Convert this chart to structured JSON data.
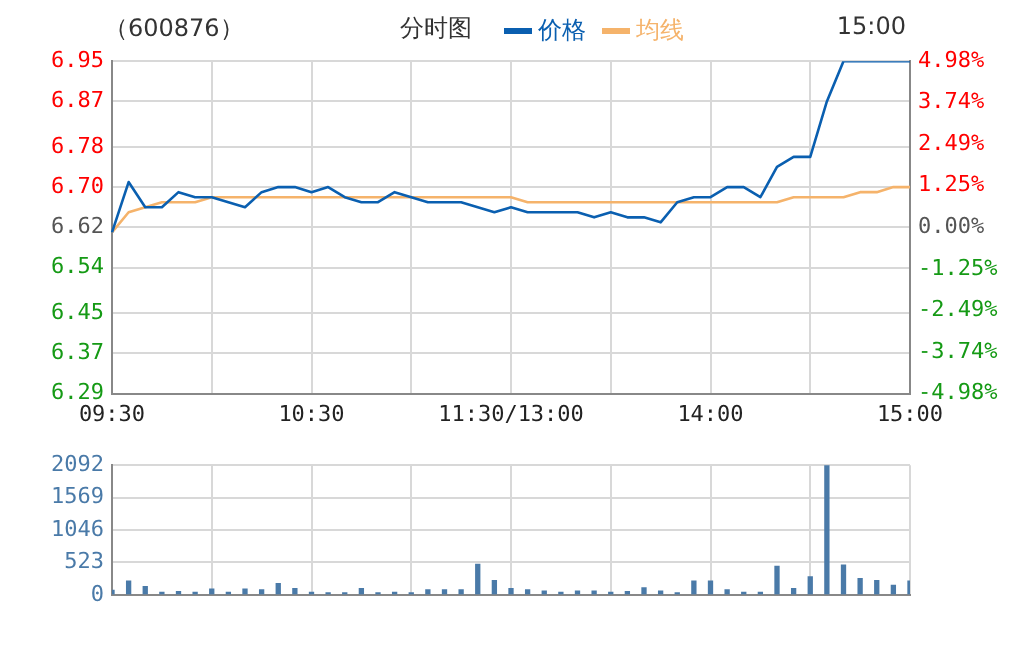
{
  "chart_data": [
    {
      "type": "line",
      "title": "分时图",
      "subtitle": "（600876）",
      "annotations": [
        "15:00"
      ],
      "legend": "top",
      "grid": true,
      "marker": "none",
      "line_style": "solid",
      "categories": [
        "09:30",
        null,
        null,
        null,
        null,
        null,
        null,
        null,
        null,
        null,
        null,
        null,
        "10:30",
        null,
        null,
        null,
        null,
        null,
        null,
        null,
        null,
        null,
        null,
        null,
        "11:30/13:00",
        null,
        null,
        null,
        null,
        null,
        null,
        null,
        null,
        null,
        null,
        null,
        "14:00",
        null,
        null,
        null,
        null,
        null,
        null,
        null,
        null,
        null,
        null,
        null,
        "15:00"
      ],
      "ylim": [
        6.29,
        6.95
      ],
      "yticks": [
        {
          "value": 6.29,
          "label": "6.29"
        },
        {
          "value": 6.37,
          "label": "6.37"
        },
        {
          "value": 6.45,
          "label": "6.45"
        },
        {
          "value": 6.54,
          "label": "6.54"
        },
        {
          "value": 6.62,
          "label": "6.62"
        },
        {
          "value": 6.7,
          "label": "6.70"
        },
        {
          "value": 6.78,
          "label": "6.78"
        },
        {
          "value": 6.87,
          "label": "6.87"
        },
        {
          "value": 6.95,
          "label": "6.95"
        }
      ],
      "y2lim": [
        -4.98,
        4.98
      ],
      "y2ticks": [
        {
          "value": -4.98,
          "label": "-4.98%"
        },
        {
          "value": -3.74,
          "label": "-3.74%"
        },
        {
          "value": -2.49,
          "label": "-2.49%"
        },
        {
          "value": -1.25,
          "label": "-1.25%"
        },
        {
          "value": 0,
          "label": "0.00%"
        },
        {
          "value": 1.25,
          "label": "1.25%"
        },
        {
          "value": 2.49,
          "label": "2.49%"
        },
        {
          "value": 3.74,
          "label": "3.74%"
        },
        {
          "value": 4.98,
          "label": "4.98%"
        }
      ],
      "series": [
        {
          "name": "价格",
          "color": "#0a5fb0",
          "values": [
            6.61,
            6.71,
            6.66,
            6.66,
            6.69,
            6.68,
            6.68,
            6.67,
            6.66,
            6.69,
            6.7,
            6.7,
            6.69,
            6.7,
            6.68,
            6.67,
            6.67,
            6.69,
            6.68,
            6.67,
            6.67,
            6.67,
            6.66,
            6.65,
            6.66,
            6.65,
            6.65,
            6.65,
            6.65,
            6.64,
            6.65,
            6.64,
            6.64,
            6.63,
            6.67,
            6.68,
            6.68,
            6.7,
            6.7,
            6.68,
            6.74,
            6.76,
            6.76,
            6.87,
            6.95,
            6.95,
            6.95,
            6.95,
            6.95
          ]
        },
        {
          "name": "均线",
          "color": "#f5b36b",
          "values": [
            6.61,
            6.65,
            6.66,
            6.67,
            6.67,
            6.67,
            6.68,
            6.68,
            6.68,
            6.68,
            6.68,
            6.68,
            6.68,
            6.68,
            6.68,
            6.68,
            6.68,
            6.68,
            6.68,
            6.68,
            6.68,
            6.68,
            6.68,
            6.68,
            6.68,
            6.67,
            6.67,
            6.67,
            6.67,
            6.67,
            6.67,
            6.67,
            6.67,
            6.67,
            6.67,
            6.67,
            6.67,
            6.67,
            6.67,
            6.67,
            6.67,
            6.68,
            6.68,
            6.68,
            6.68,
            6.69,
            6.69,
            6.7,
            6.7
          ]
        }
      ]
    },
    {
      "type": "bar",
      "grid": true,
      "tick_labels": "y",
      "color": "#4a7aa8",
      "categories": [
        null,
        null,
        null,
        null,
        null,
        null,
        null,
        null,
        null,
        null,
        null,
        null,
        null,
        null,
        null,
        null,
        null,
        null,
        null,
        null,
        null,
        null,
        null,
        null,
        null,
        null,
        null,
        null,
        null,
        null,
        null,
        null,
        null,
        null,
        null,
        null,
        null,
        null,
        null,
        null,
        null,
        null,
        null,
        null,
        null,
        null,
        null,
        null,
        null
      ],
      "ylim": [
        0,
        2092
      ],
      "yticks": [
        0,
        523,
        1046,
        1569,
        2092
      ],
      "values": [
        70,
        220,
        130,
        40,
        50,
        40,
        90,
        40,
        90,
        80,
        180,
        100,
        40,
        30,
        30,
        100,
        30,
        40,
        30,
        80,
        80,
        80,
        490,
        230,
        100,
        80,
        60,
        40,
        60,
        60,
        40,
        50,
        110,
        60,
        30,
        220,
        220,
        80,
        40,
        40,
        460,
        100,
        290,
        2092,
        480,
        260,
        230,
        150,
        220
      ]
    }
  ]
}
